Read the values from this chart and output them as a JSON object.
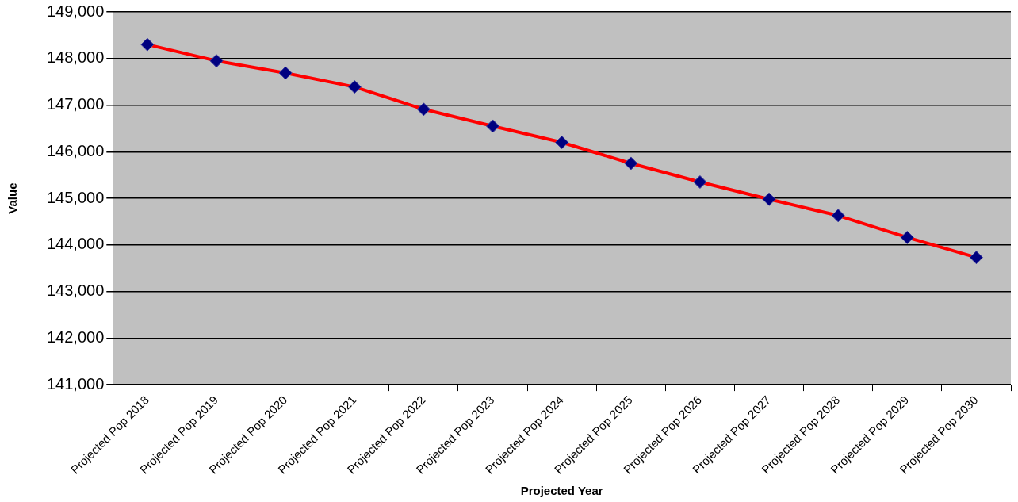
{
  "chart_data": {
    "type": "line",
    "xlabel": "Projected Year",
    "ylabel": "Value",
    "categories": [
      "Projected Pop 2018",
      "Projected Pop 2019",
      "Projected Pop 2020",
      "Projected Pop 2021",
      "Projected Pop 2022",
      "Projected Pop 2023",
      "Projected Pop 2024",
      "Projected Pop 2025",
      "Projected Pop 2026",
      "Projected Pop 2027",
      "Projected Pop 2028",
      "Projected Pop 2029",
      "Projected Pop 2030"
    ],
    "series": [
      {
        "color": "#ff0000",
        "values": [
          148300,
          147950,
          147690,
          147390,
          146910,
          146550,
          146200,
          145750,
          145350,
          144980,
          144630,
          144160,
          143730
        ]
      }
    ],
    "ylim": [
      141000,
      149000
    ],
    "yticks": [
      {
        "value": 141000,
        "label": "141,000"
      },
      {
        "value": 142000,
        "label": "142,000"
      },
      {
        "value": 143000,
        "label": "143,000"
      },
      {
        "value": 144000,
        "label": "144,000"
      },
      {
        "value": 145000,
        "label": "145,000"
      },
      {
        "value": 146000,
        "label": "146,000"
      },
      {
        "value": 147000,
        "label": "147,000"
      },
      {
        "value": 148000,
        "label": "148,000"
      },
      {
        "value": 149000,
        "label": "149,000"
      }
    ],
    "grid": "y",
    "marker": "diamond",
    "line_style": "solid"
  }
}
